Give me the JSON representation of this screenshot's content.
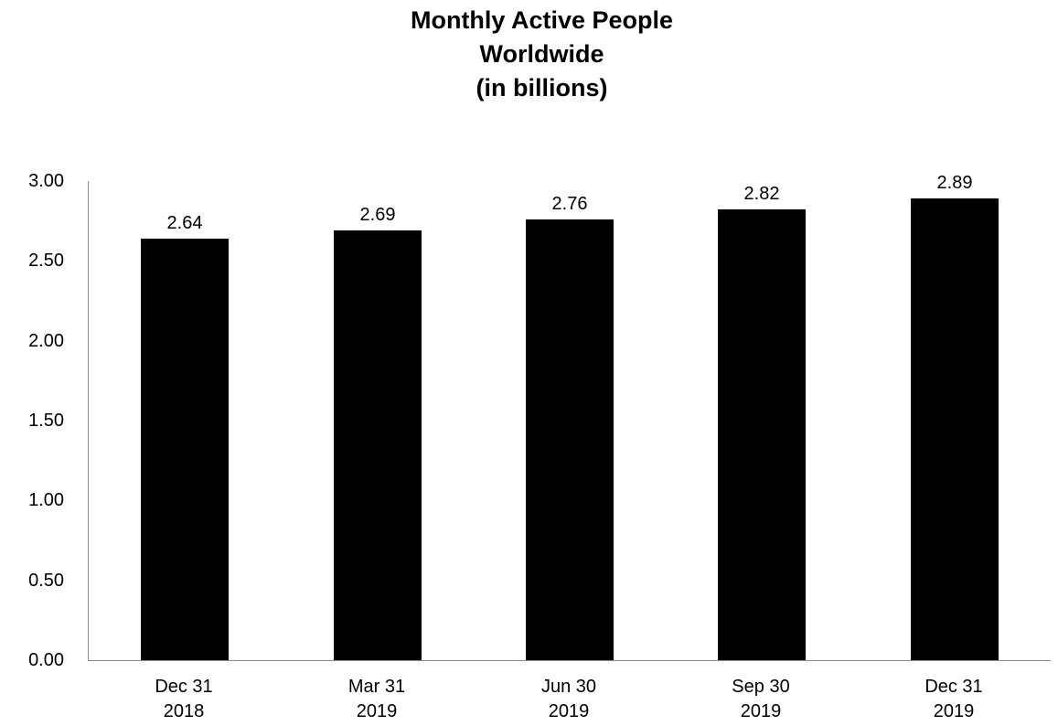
{
  "chart_data": {
    "type": "bar",
    "title_lines": [
      "Monthly Active People",
      "Worldwide",
      "(in billions)"
    ],
    "categories": [
      [
        "Dec 31",
        "2018"
      ],
      [
        "Mar 31",
        "2019"
      ],
      [
        "Jun 30",
        "2019"
      ],
      [
        "Sep 30",
        "2019"
      ],
      [
        "Dec 31",
        "2019"
      ]
    ],
    "values": [
      2.64,
      2.69,
      2.76,
      2.82,
      2.89
    ],
    "value_labels": [
      "2.64",
      "2.69",
      "2.76",
      "2.82",
      "2.89"
    ],
    "y_ticks": [
      "0.00",
      "0.50",
      "1.00",
      "1.50",
      "2.00",
      "2.50",
      "3.00"
    ],
    "ylim": [
      0,
      3.0
    ],
    "xlabel": "",
    "ylabel": "",
    "grid": false,
    "legend": "none",
    "colors": {
      "bar": "#000000",
      "axis": "#8c8c8c",
      "text": "#000000",
      "background": "#ffffff"
    }
  }
}
